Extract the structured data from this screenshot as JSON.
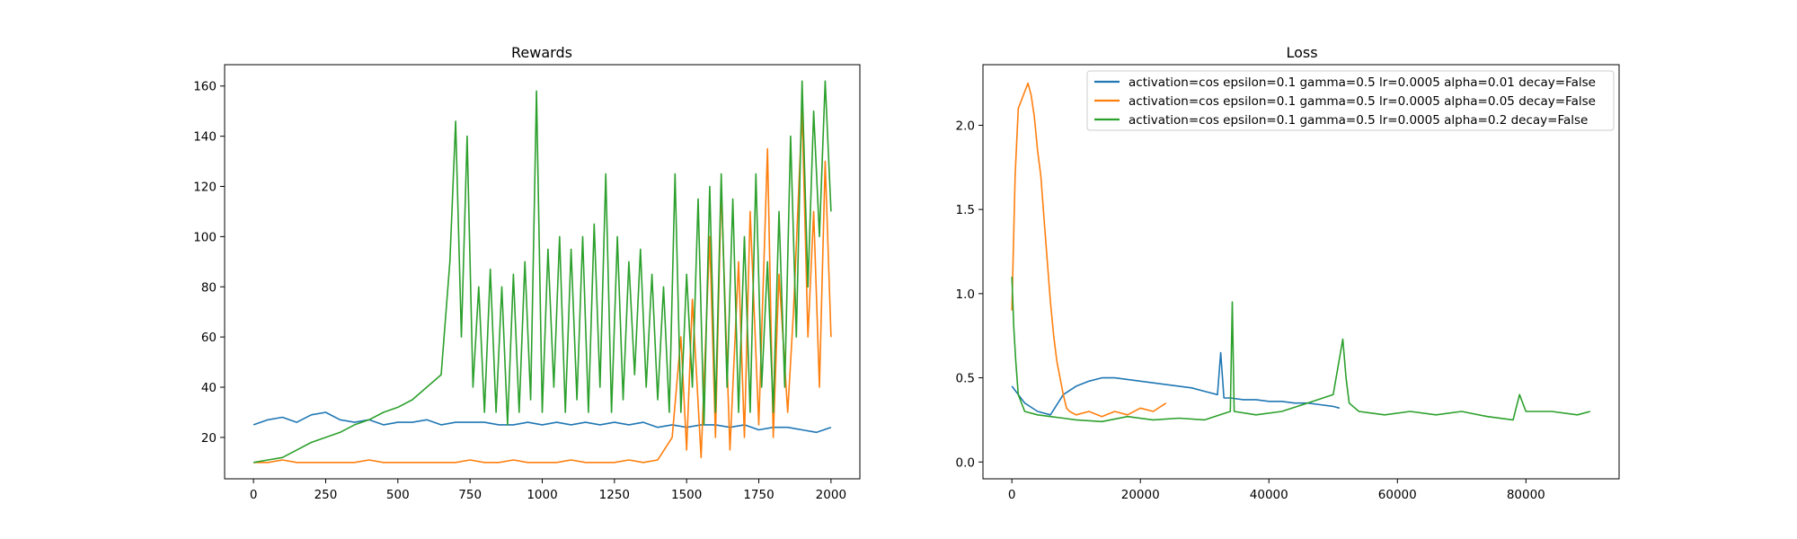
{
  "colors": {
    "blue": "#1f77b4",
    "orange": "#ff7f0e",
    "green": "#2ca02c",
    "axes": "#000000",
    "background": "#ffffff"
  },
  "chart_data": [
    {
      "type": "line",
      "title": "Rewards",
      "xlabel": "",
      "ylabel": "",
      "xlim": [
        -100,
        2100
      ],
      "ylim": [
        3.5,
        168.5
      ],
      "xticks": [
        0,
        250,
        500,
        750,
        1000,
        1250,
        1500,
        1750,
        2000
      ],
      "yticks": [
        20,
        40,
        60,
        80,
        100,
        120,
        140,
        160
      ],
      "grid": false,
      "legend": null,
      "series": [
        {
          "color": "blue",
          "x": [
            0,
            50,
            100,
            150,
            200,
            250,
            300,
            350,
            400,
            450,
            500,
            550,
            600,
            650,
            700,
            750,
            800,
            850,
            900,
            950,
            1000,
            1050,
            1100,
            1150,
            1200,
            1250,
            1300,
            1350,
            1400,
            1450,
            1500,
            1550,
            1600,
            1650,
            1700,
            1750,
            1800,
            1850,
            1900,
            1950,
            2000
          ],
          "y": [
            25,
            27,
            28,
            26,
            29,
            30,
            27,
            26,
            27,
            25,
            26,
            26,
            27,
            25,
            26,
            26,
            26,
            25,
            25,
            26,
            25,
            26,
            25,
            26,
            25,
            26,
            25,
            26,
            24,
            25,
            24,
            25,
            25,
            24,
            25,
            23,
            24,
            24,
            23,
            22,
            24
          ]
        },
        {
          "color": "orange",
          "x": [
            0,
            50,
            100,
            150,
            200,
            250,
            300,
            350,
            400,
            450,
            500,
            550,
            600,
            650,
            700,
            750,
            800,
            850,
            900,
            950,
            1000,
            1050,
            1100,
            1150,
            1200,
            1250,
            1300,
            1350,
            1400,
            1450,
            1480,
            1500,
            1520,
            1550,
            1580,
            1600,
            1620,
            1650,
            1680,
            1700,
            1720,
            1750,
            1780,
            1800,
            1820,
            1850,
            1870,
            1900,
            1920,
            1940,
            1960,
            1980,
            2000
          ],
          "y": [
            10,
            10,
            11,
            10,
            10,
            10,
            10,
            10,
            11,
            10,
            10,
            10,
            10,
            10,
            10,
            11,
            10,
            10,
            11,
            10,
            10,
            10,
            11,
            10,
            10,
            10,
            11,
            10,
            11,
            20,
            60,
            15,
            75,
            12,
            100,
            20,
            120,
            15,
            90,
            20,
            110,
            25,
            135,
            20,
            85,
            30,
            70,
            150,
            60,
            110,
            40,
            130,
            60
          ]
        },
        {
          "color": "green",
          "x": [
            0,
            50,
            100,
            150,
            200,
            250,
            300,
            350,
            400,
            450,
            500,
            550,
            600,
            650,
            680,
            700,
            720,
            740,
            760,
            780,
            800,
            820,
            840,
            860,
            880,
            900,
            920,
            940,
            960,
            980,
            1000,
            1020,
            1040,
            1060,
            1080,
            1100,
            1120,
            1140,
            1160,
            1180,
            1200,
            1220,
            1240,
            1260,
            1280,
            1300,
            1320,
            1340,
            1360,
            1380,
            1400,
            1420,
            1440,
            1460,
            1480,
            1500,
            1520,
            1540,
            1560,
            1580,
            1600,
            1620,
            1640,
            1660,
            1680,
            1700,
            1720,
            1740,
            1760,
            1780,
            1800,
            1820,
            1840,
            1860,
            1880,
            1900,
            1920,
            1940,
            1960,
            1980,
            2000
          ],
          "y": [
            10,
            11,
            12,
            15,
            18,
            20,
            22,
            25,
            27,
            30,
            32,
            35,
            40,
            45,
            90,
            146,
            60,
            140,
            40,
            80,
            30,
            87,
            30,
            80,
            25,
            85,
            30,
            90,
            35,
            158,
            30,
            95,
            40,
            100,
            30,
            95,
            35,
            100,
            30,
            105,
            40,
            125,
            30,
            100,
            35,
            90,
            45,
            95,
            40,
            85,
            35,
            80,
            30,
            125,
            30,
            85,
            40,
            115,
            25,
            120,
            30,
            125,
            40,
            115,
            30,
            100,
            30,
            125,
            40,
            90,
            30,
            110,
            40,
            140,
            60,
            162,
            80,
            150,
            100,
            162,
            110
          ]
        }
      ]
    },
    {
      "type": "line",
      "title": "Loss",
      "xlabel": "",
      "ylabel": "",
      "xlim": [
        -4500,
        94500
      ],
      "ylim": [
        -0.1,
        2.36
      ],
      "xticks": [
        0,
        20000,
        40000,
        60000,
        80000
      ],
      "yticks": [
        0.0,
        0.5,
        1.0,
        1.5,
        2.0
      ],
      "grid": false,
      "legend": "upper right",
      "series": [
        {
          "name": "activation=cos epsilon=0.1 gamma=0.5 lr=0.0005 alpha=0.01 decay=False",
          "color": "blue",
          "x": [
            0,
            2000,
            4000,
            6000,
            8000,
            10000,
            12000,
            14000,
            16000,
            18000,
            20000,
            22000,
            24000,
            26000,
            28000,
            30000,
            32000,
            32500,
            33000,
            34000,
            36000,
            38000,
            40000,
            42000,
            44000,
            46000,
            48000,
            50000,
            51000
          ],
          "y": [
            0.45,
            0.35,
            0.3,
            0.28,
            0.4,
            0.45,
            0.48,
            0.5,
            0.5,
            0.49,
            0.48,
            0.47,
            0.46,
            0.45,
            0.44,
            0.42,
            0.4,
            0.65,
            0.38,
            0.38,
            0.37,
            0.37,
            0.36,
            0.36,
            0.35,
            0.35,
            0.34,
            0.33,
            0.32
          ]
        },
        {
          "name": "activation=cos epsilon=0.1 gamma=0.5 lr=0.0005 alpha=0.05 decay=False",
          "color": "orange",
          "x": [
            0,
            500,
            1000,
            1500,
            2000,
            2500,
            3000,
            3500,
            4000,
            4500,
            5000,
            5500,
            6000,
            6500,
            7000,
            7500,
            8000,
            8500,
            9000,
            10000,
            12000,
            14000,
            16000,
            18000,
            20000,
            22000,
            24000
          ],
          "y": [
            0.9,
            1.7,
            2.1,
            2.15,
            2.2,
            2.25,
            2.18,
            2.05,
            1.85,
            1.7,
            1.45,
            1.2,
            0.95,
            0.75,
            0.6,
            0.5,
            0.4,
            0.32,
            0.3,
            0.28,
            0.3,
            0.27,
            0.3,
            0.28,
            0.32,
            0.3,
            0.35
          ]
        },
        {
          "name": "activation=cos epsilon=0.1 gamma=0.5 lr=0.0005 alpha=0.2 decay=False",
          "color": "green",
          "x": [
            0,
            300,
            600,
            1000,
            2000,
            4000,
            6000,
            8000,
            10000,
            14000,
            18000,
            22000,
            26000,
            30000,
            34000,
            34300,
            34600,
            38000,
            42000,
            46000,
            50000,
            51500,
            52000,
            52500,
            54000,
            58000,
            62000,
            66000,
            70000,
            74000,
            78000,
            79000,
            80000,
            84000,
            88000,
            90000
          ],
          "y": [
            1.1,
            0.8,
            0.6,
            0.4,
            0.3,
            0.28,
            0.27,
            0.26,
            0.25,
            0.24,
            0.27,
            0.25,
            0.26,
            0.25,
            0.3,
            0.95,
            0.3,
            0.28,
            0.3,
            0.35,
            0.4,
            0.73,
            0.5,
            0.35,
            0.3,
            0.28,
            0.3,
            0.28,
            0.3,
            0.27,
            0.25,
            0.4,
            0.3,
            0.3,
            0.28,
            0.3
          ]
        }
      ]
    }
  ]
}
